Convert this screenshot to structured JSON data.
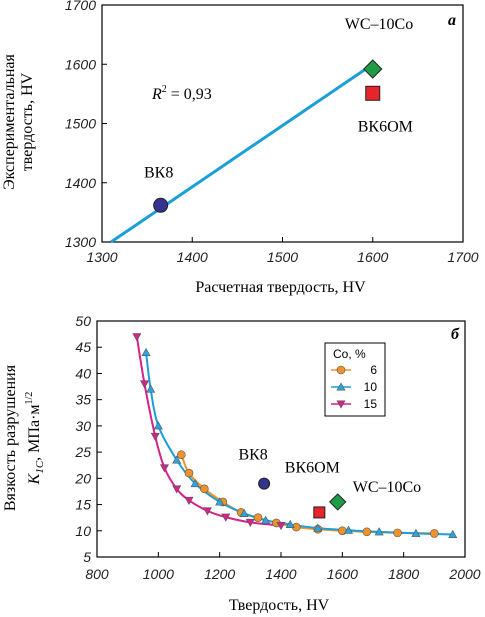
{
  "chart_data": [
    {
      "id": "a",
      "type": "scatter",
      "panel_label": "a",
      "xlabel": "Расчетная твердость, HV",
      "ylabel": [
        "Экспериментальная",
        "твердость, HV"
      ],
      "xlim": [
        1300,
        1700
      ],
      "ylim": [
        1300,
        1700
      ],
      "xticks": [
        "1300",
        "1400",
        "1500",
        "1600",
        "1700"
      ],
      "yticks": [
        "1300",
        "1400",
        "1500",
        "1600",
        "1700"
      ],
      "annotation": {
        "r2_prefix": "R",
        "r2_sup": "2",
        "r2_value": " = 0,93"
      },
      "fit_line": {
        "x": [
          1310,
          1600
        ],
        "y": [
          1300,
          1600
        ],
        "color": "#1a9fd9"
      },
      "points": [
        {
          "label": "ВК8",
          "x": 1365,
          "y": 1362,
          "marker": "circle",
          "color": "#33348f"
        },
        {
          "label": "WC–10Co",
          "x": 1600,
          "y": 1592,
          "marker": "diamond",
          "color": "#1f9b45"
        },
        {
          "label": "ВК6ОМ",
          "x": 1600,
          "y": 1551,
          "marker": "square",
          "color": "#e8242b"
        }
      ]
    },
    {
      "id": "b",
      "type": "line",
      "panel_label": "б",
      "xlabel": "Твердость, HV",
      "ylabel": {
        "line1": "Вязкость разрушения",
        "k": "K",
        "sub": "1C",
        "unit": ", МПа·м",
        "sup": "1/2"
      },
      "xlim": [
        800,
        2000
      ],
      "ylim": [
        5,
        50
      ],
      "xticks": [
        "800",
        "1000",
        "1200",
        "1400",
        "1600",
        "1800",
        "2000"
      ],
      "yticks": [
        "5",
        "10",
        "15",
        "20",
        "25",
        "30",
        "35",
        "40",
        "45",
        "50"
      ],
      "legend": {
        "title": "Co, %",
        "position": "top-right"
      },
      "series": [
        {
          "name": "6",
          "color": "#f0922b",
          "line_color": "#f0922b",
          "marker": "circle",
          "x": [
            1075,
            1100,
            1150,
            1210,
            1270,
            1325,
            1385,
            1450,
            1520,
            1600,
            1680,
            1780,
            1900
          ],
          "y": [
            24.5,
            21,
            18,
            15.5,
            13.5,
            12.5,
            11.5,
            10.7,
            10.3,
            10,
            9.8,
            9.6,
            9.5
          ]
        },
        {
          "name": "10",
          "color": "#29a6de",
          "line_color": "#1a9fd9",
          "marker": "triangle-up",
          "x": [
            960,
            975,
            1000,
            1060,
            1120,
            1200,
            1280,
            1350,
            1430,
            1520,
            1620,
            1720,
            1840,
            1960
          ],
          "y": [
            44,
            37,
            30,
            23.5,
            19,
            15.5,
            13.3,
            12,
            11.2,
            10.5,
            10.1,
            9.8,
            9.5,
            9.3
          ]
        },
        {
          "name": "15",
          "color": "#d6228b",
          "line_color": "#d6228b",
          "marker": "triangle-down",
          "x": [
            930,
            955,
            990,
            1020,
            1060,
            1100,
            1160,
            1220,
            1300,
            1400
          ],
          "y": [
            47,
            38,
            28,
            22,
            18,
            15.8,
            13.8,
            12.6,
            11.6,
            11
          ]
        }
      ],
      "points": [
        {
          "label": "ВК8",
          "x": 1345,
          "y": 19,
          "marker": "circle",
          "color": "#33348f"
        },
        {
          "label": "ВК6ОМ",
          "x": 1525,
          "y": 13.5,
          "marker": "square",
          "color": "#e8242b"
        },
        {
          "label": "WC–10Co",
          "x": 1585,
          "y": 15.5,
          "marker": "diamond",
          "color": "#1f9b45"
        }
      ]
    }
  ]
}
